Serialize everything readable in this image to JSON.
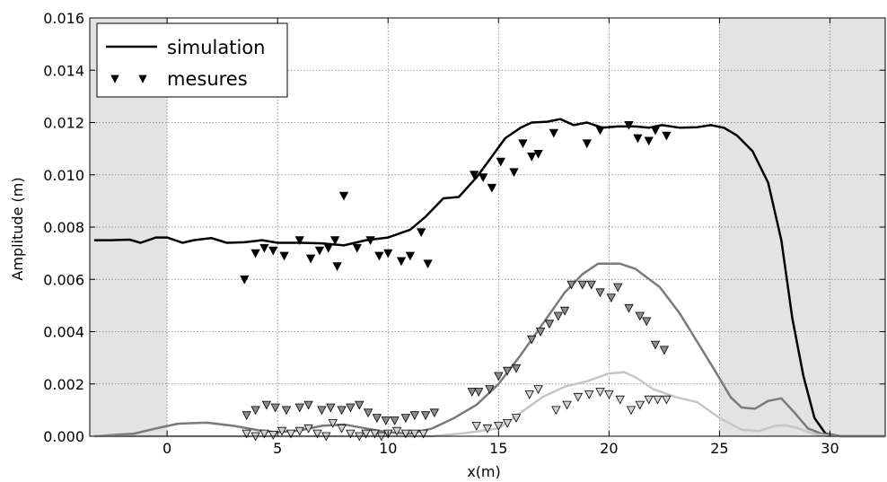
{
  "chart_data": {
    "type": "line",
    "title": "",
    "xlabel": "x(m)",
    "ylabel": "Amplitude (m)",
    "xlim": [
      -3.5,
      32.5
    ],
    "ylim": [
      0,
      0.016
    ],
    "xticks": [
      0,
      5,
      10,
      15,
      20,
      25,
      30
    ],
    "yticks": [
      0.0,
      0.002,
      0.004,
      0.006,
      0.008,
      0.01,
      0.012,
      0.014,
      0.016
    ],
    "xtick_labels": [
      "0",
      "5",
      "10",
      "15",
      "20",
      "25",
      "30"
    ],
    "ytick_labels": [
      "0.000",
      "0.002",
      "0.004",
      "0.006",
      "0.008",
      "0.010",
      "0.012",
      "0.014",
      "0.016"
    ],
    "grid": true,
    "shaded_x_ranges": [
      [
        -3.5,
        0
      ],
      [
        25,
        32.5
      ]
    ],
    "shade_color": "#e3e3e3",
    "legend": {
      "placement": "top-left",
      "entries": [
        {
          "label": "simulation",
          "kind": "line"
        },
        {
          "label": "mesures",
          "kind": "marker"
        }
      ]
    },
    "series": [
      {
        "kind": "line",
        "color": "#000000",
        "points": [
          [
            -3.3,
            0.0075
          ],
          [
            -2.5,
            0.0075
          ],
          [
            -1.7,
            0.00752
          ],
          [
            -1.2,
            0.0074
          ],
          [
            -0.5,
            0.0076
          ],
          [
            0,
            0.0076
          ],
          [
            0.7,
            0.0074
          ],
          [
            1.2,
            0.0075
          ],
          [
            2.0,
            0.00758
          ],
          [
            2.7,
            0.0074
          ],
          [
            3.5,
            0.00742
          ],
          [
            4.3,
            0.0075
          ],
          [
            5,
            0.0074
          ],
          [
            6,
            0.0074
          ],
          [
            7,
            0.00738
          ],
          [
            8,
            0.0073
          ],
          [
            9,
            0.0075
          ],
          [
            10,
            0.0076
          ],
          [
            11,
            0.0079
          ],
          [
            11.7,
            0.0084
          ],
          [
            12.5,
            0.0091
          ],
          [
            13.2,
            0.00915
          ],
          [
            14,
            0.0099
          ],
          [
            14.7,
            0.0107
          ],
          [
            15.3,
            0.0114
          ],
          [
            16,
            0.0118
          ],
          [
            16.5,
            0.012
          ],
          [
            17.2,
            0.01203
          ],
          [
            17.8,
            0.01213
          ],
          [
            18.4,
            0.0119
          ],
          [
            19,
            0.012
          ],
          [
            19.7,
            0.0118
          ],
          [
            20.4,
            0.01185
          ],
          [
            21.2,
            0.01185
          ],
          [
            21.8,
            0.0118
          ],
          [
            22.4,
            0.0119
          ],
          [
            23.2,
            0.0118
          ],
          [
            24,
            0.01182
          ],
          [
            24.6,
            0.0119
          ],
          [
            25.2,
            0.0118
          ],
          [
            25.8,
            0.0115
          ],
          [
            26.5,
            0.0109
          ],
          [
            27.2,
            0.0097
          ],
          [
            27.8,
            0.0075
          ],
          [
            28.3,
            0.0045
          ],
          [
            28.8,
            0.0023
          ],
          [
            29.3,
            0.0007
          ],
          [
            29.8,
            0.0001
          ],
          [
            30.5,
            0.0
          ],
          [
            32.5,
            0.0
          ]
        ]
      },
      {
        "kind": "line",
        "color": "#7a7a7a",
        "points": [
          [
            -3.3,
            0.0
          ],
          [
            -1.5,
            0.0001
          ],
          [
            -0.5,
            0.0003
          ],
          [
            0.5,
            0.00048
          ],
          [
            1.8,
            0.00052
          ],
          [
            3,
            0.0004
          ],
          [
            4.2,
            0.00022
          ],
          [
            5,
            0.00015
          ],
          [
            6,
            0.00022
          ],
          [
            7,
            0.0004
          ],
          [
            8,
            0.00045
          ],
          [
            9,
            0.0003
          ],
          [
            10,
            0.00015
          ],
          [
            11,
            0.0001
          ],
          [
            12,
            0.0003
          ],
          [
            13,
            0.0007
          ],
          [
            14,
            0.0012
          ],
          [
            15,
            0.002
          ],
          [
            16,
            0.0031
          ],
          [
            17,
            0.0043
          ],
          [
            18,
            0.0055
          ],
          [
            18.8,
            0.0062
          ],
          [
            19.5,
            0.0066
          ],
          [
            20.5,
            0.0066
          ],
          [
            21.2,
            0.0064
          ],
          [
            22.3,
            0.0057
          ],
          [
            23.2,
            0.0047
          ],
          [
            24,
            0.0036
          ],
          [
            24.8,
            0.0025
          ],
          [
            25.5,
            0.0015
          ],
          [
            26,
            0.0011
          ],
          [
            26.6,
            0.00105
          ],
          [
            27.2,
            0.00135
          ],
          [
            27.8,
            0.00145
          ],
          [
            28.4,
            0.0009
          ],
          [
            29,
            0.0003
          ],
          [
            29.6,
            0.0001
          ],
          [
            30.5,
            0.0
          ],
          [
            32.5,
            0.0
          ]
        ]
      },
      {
        "kind": "line",
        "color": "#c6c6c6",
        "points": [
          [
            -3.3,
            0.0
          ],
          [
            10,
            0.0
          ],
          [
            12,
            0.0
          ],
          [
            13.5,
            0.00012
          ],
          [
            15,
            0.0003
          ],
          [
            16,
            0.0009
          ],
          [
            17,
            0.0015
          ],
          [
            18,
            0.0019
          ],
          [
            19,
            0.0021
          ],
          [
            20,
            0.0024
          ],
          [
            20.7,
            0.00245
          ],
          [
            21.3,
            0.0022
          ],
          [
            22,
            0.0018
          ],
          [
            23,
            0.0015
          ],
          [
            24,
            0.0013
          ],
          [
            25,
            0.0007
          ],
          [
            26,
            0.00025
          ],
          [
            26.8,
            0.0002
          ],
          [
            27.5,
            0.0004
          ],
          [
            28,
            0.00042
          ],
          [
            28.6,
            0.0003
          ],
          [
            29.2,
            0.0001
          ],
          [
            30,
            0.0
          ],
          [
            32.5,
            0.0
          ]
        ]
      },
      {
        "kind": "scatter",
        "fill": "#000000",
        "points": [
          [
            3.5,
            0.006
          ],
          [
            4,
            0.007
          ],
          [
            4.4,
            0.0072
          ],
          [
            4.8,
            0.0071
          ],
          [
            5.3,
            0.0069
          ],
          [
            6,
            0.0075
          ],
          [
            6.5,
            0.0068
          ],
          [
            6.9,
            0.0071
          ],
          [
            7.3,
            0.0072
          ],
          [
            7.6,
            0.0075
          ],
          [
            7.7,
            0.0065
          ],
          [
            8,
            0.0092
          ],
          [
            8.6,
            0.0072
          ],
          [
            9.2,
            0.0075
          ],
          [
            9.6,
            0.0069
          ],
          [
            10,
            0.007
          ],
          [
            10.6,
            0.0067
          ],
          [
            11,
            0.0069
          ],
          [
            11.5,
            0.0078
          ],
          [
            11.8,
            0.0066
          ],
          [
            13.9,
            0.01
          ],
          [
            14.3,
            0.0099
          ],
          [
            14.7,
            0.0095
          ],
          [
            15.1,
            0.0105
          ],
          [
            15.7,
            0.0101
          ],
          [
            16.1,
            0.0112
          ],
          [
            16.5,
            0.0107
          ],
          [
            16.8,
            0.0108
          ],
          [
            17.5,
            0.0116
          ],
          [
            19.0,
            0.0112
          ],
          [
            19.6,
            0.0117
          ],
          [
            20.9,
            0.0119
          ],
          [
            21.3,
            0.0114
          ],
          [
            21.8,
            0.0113
          ],
          [
            22.1,
            0.0117
          ],
          [
            22.6,
            0.0115
          ]
        ]
      },
      {
        "kind": "scatter",
        "fill": "#8c8c8c",
        "points": [
          [
            3.6,
            0.0008
          ],
          [
            4,
            0.001
          ],
          [
            4.5,
            0.0012
          ],
          [
            4.9,
            0.0011
          ],
          [
            5.4,
            0.001
          ],
          [
            6,
            0.0011
          ],
          [
            6.4,
            0.0012
          ],
          [
            7,
            0.001
          ],
          [
            7.4,
            0.0011
          ],
          [
            7.9,
            0.001
          ],
          [
            8.3,
            0.0011
          ],
          [
            8.7,
            0.0012
          ],
          [
            9.1,
            0.0009
          ],
          [
            9.5,
            0.0007
          ],
          [
            9.9,
            0.0006
          ],
          [
            10.3,
            0.0006
          ],
          [
            10.8,
            0.0007
          ],
          [
            11.2,
            0.0008
          ],
          [
            11.7,
            0.0008
          ],
          [
            12.1,
            0.0009
          ],
          [
            13.8,
            0.0017
          ],
          [
            14.1,
            0.0017
          ],
          [
            14.6,
            0.0018
          ],
          [
            15.0,
            0.0023
          ],
          [
            15.4,
            0.0025
          ],
          [
            15.8,
            0.0026
          ],
          [
            16.5,
            0.0037
          ],
          [
            16.9,
            0.004
          ],
          [
            17.3,
            0.0043
          ],
          [
            17.7,
            0.0046
          ],
          [
            18.0,
            0.0048
          ],
          [
            18.3,
            0.0058
          ],
          [
            18.8,
            0.0058
          ],
          [
            19.2,
            0.0058
          ],
          [
            19.6,
            0.0055
          ],
          [
            20.1,
            0.0053
          ],
          [
            20.4,
            0.0057
          ],
          [
            20.9,
            0.0049
          ],
          [
            21.4,
            0.0046
          ],
          [
            21.7,
            0.0044
          ],
          [
            22.1,
            0.0035
          ],
          [
            22.5,
            0.0033
          ]
        ]
      },
      {
        "kind": "scatter",
        "fill": "#d2d2d2",
        "points": [
          [
            3.6,
            0.0001
          ],
          [
            4,
            0.0
          ],
          [
            4.4,
            0.0001
          ],
          [
            4.8,
            5e-05
          ],
          [
            5.2,
            0.0002
          ],
          [
            5.6,
            0.0001
          ],
          [
            6,
            0.0002
          ],
          [
            6.4,
            0.0003
          ],
          [
            6.8,
            0.0001
          ],
          [
            7.2,
            0.0
          ],
          [
            7.5,
            0.0005
          ],
          [
            7.9,
            0.0003
          ],
          [
            8.3,
            0.0001
          ],
          [
            8.7,
            0.0
          ],
          [
            9,
            0.0001
          ],
          [
            9.4,
            0.0001
          ],
          [
            9.7,
            0.0
          ],
          [
            10,
            0.0001
          ],
          [
            10.4,
            0.0002
          ],
          [
            10.8,
            0.0001
          ],
          [
            11.2,
            0.0001
          ],
          [
            11.6,
            0.0001
          ],
          [
            14.0,
            0.0004
          ],
          [
            14.5,
            0.0003
          ],
          [
            15,
            0.0004
          ],
          [
            15.4,
            0.0005
          ],
          [
            15.8,
            0.0007
          ],
          [
            16.4,
            0.0016
          ],
          [
            16.8,
            0.0018
          ],
          [
            17.6,
            0.001
          ],
          [
            18.1,
            0.0012
          ],
          [
            18.6,
            0.0015
          ],
          [
            19.1,
            0.0016
          ],
          [
            19.6,
            0.0017
          ],
          [
            20,
            0.0016
          ],
          [
            20.5,
            0.0014
          ],
          [
            21,
            0.001
          ],
          [
            21.4,
            0.0012
          ],
          [
            21.8,
            0.0014
          ],
          [
            22.2,
            0.0014
          ],
          [
            22.6,
            0.0014
          ]
        ]
      }
    ]
  }
}
